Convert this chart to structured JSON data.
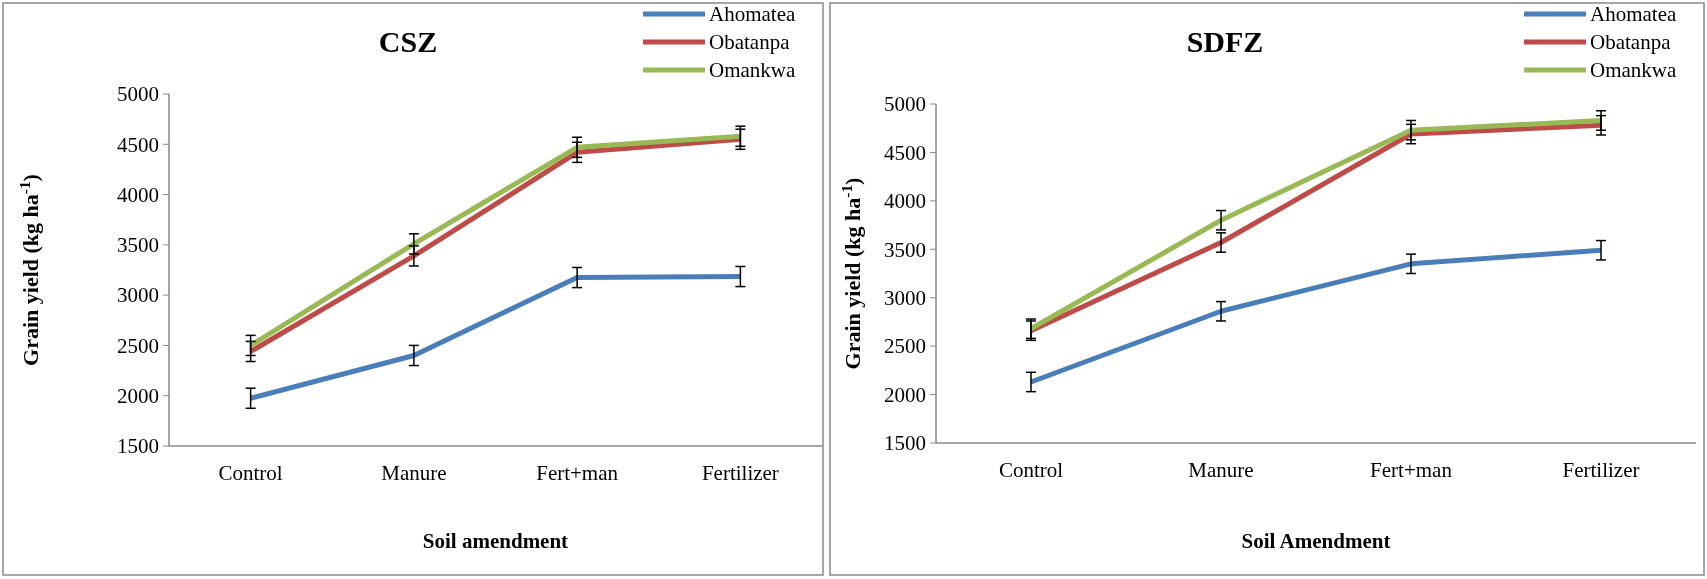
{
  "chart_data": [
    {
      "type": "line",
      "title": "CSZ",
      "xlabel": "Soil amendment",
      "ylabel": "Grain yield (kg ha$^{-1}$)",
      "categories": [
        "Control",
        "Manure",
        "Fert+man",
        "Fertilizer"
      ],
      "ylim": [
        1500,
        5000
      ],
      "yticks": [
        1500,
        2000,
        2500,
        3000,
        3500,
        4000,
        4500,
        5000
      ],
      "legend": "top right",
      "marker": "none",
      "line_style": "solid",
      "grid": false,
      "series": [
        {
          "name": "Ahomatea",
          "color": "#4a7ebb",
          "values": [
            1975,
            2400,
            3175,
            3185
          ],
          "errors": [
            100,
            100,
            100,
            100
          ]
        },
        {
          "name": "Obatanpa",
          "color": "#be4b48",
          "values": [
            2440,
            3390,
            4420,
            4550
          ],
          "errors": [
            100,
            100,
            100,
            100
          ]
        },
        {
          "name": "Omankwa",
          "color": "#98b954",
          "values": [
            2500,
            3510,
            4470,
            4580
          ],
          "errors": [
            100,
            100,
            100,
            100
          ]
        }
      ]
    },
    {
      "type": "line",
      "title": "SDFZ",
      "xlabel": "Soil Amendment",
      "ylabel": "Grain yield (kg ha$^{-1}$)",
      "categories": [
        "Control",
        "Manure",
        "Fert+man",
        "Fertilizer"
      ],
      "ylim": [
        1500,
        5000
      ],
      "yticks": [
        1500,
        2000,
        2500,
        3000,
        3500,
        4000,
        4500,
        5000
      ],
      "legend": "top right",
      "marker": "none",
      "line_style": "solid",
      "grid": false,
      "series": [
        {
          "name": "Ahomatea",
          "color": "#4a7ebb",
          "values": [
            2130,
            2860,
            3350,
            3490
          ],
          "errors": [
            100,
            100,
            100,
            100
          ]
        },
        {
          "name": "Obatanpa",
          "color": "#be4b48",
          "values": [
            2660,
            3570,
            4690,
            4780
          ],
          "errors": [
            100,
            100,
            100,
            100
          ]
        },
        {
          "name": "Omankwa",
          "color": "#98b954",
          "values": [
            2680,
            3800,
            4730,
            4830
          ],
          "errors": [
            100,
            100,
            100,
            100
          ]
        }
      ]
    }
  ]
}
